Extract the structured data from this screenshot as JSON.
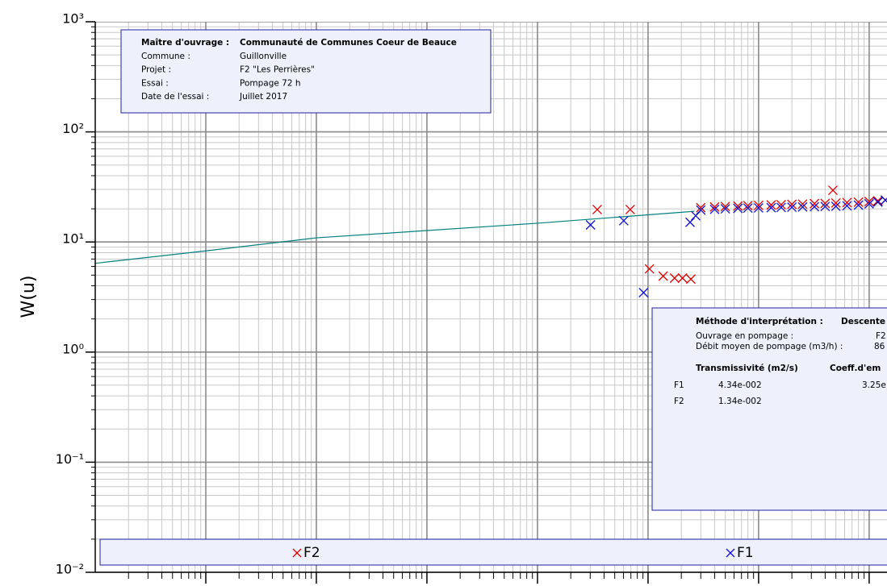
{
  "chart_data": {
    "type": "scatter",
    "y_label": "W(u)",
    "xscale": "log",
    "yscale": "log",
    "grid": true,
    "xlim": [
      0.1,
      1450000
    ],
    "xticks": [
      1,
      10,
      100,
      1000,
      10000,
      100000,
      1000000
    ],
    "ylim": [
      0.01,
      1000
    ],
    "yticks": [
      {
        "value": 0.01,
        "label": "10⁻²"
      },
      {
        "value": 0.1,
        "label": "10⁻¹"
      },
      {
        "value": 1,
        "label": "10⁰"
      },
      {
        "value": 10,
        "label": "10¹"
      },
      {
        "value": 100,
        "label": "10²"
      },
      {
        "value": 1000,
        "label": "10³"
      }
    ],
    "curve": {
      "color": "#008080",
      "x": [
        0.1,
        1,
        10,
        1000,
        26300
      ],
      "values": [
        6.4,
        8.3,
        10.9,
        14.8,
        19
      ]
    },
    "series": [
      {
        "name": "F2",
        "color": "#e00000",
        "x": [
          3470,
          6900,
          10300,
          13700,
          17400,
          20500,
          24400,
          470000,
          30000,
          40000,
          50000,
          65000,
          80000,
          100000,
          130000,
          160000,
          200000,
          250000,
          320000,
          400000,
          500000,
          630000,
          800000,
          1000000,
          1200000,
          1400000
        ],
        "values": [
          19.7,
          19.7,
          5.7,
          4.9,
          4.7,
          4.7,
          4.6,
          29.5,
          20.5,
          20.8,
          21,
          21.2,
          21.4,
          21.5,
          21.7,
          21.8,
          22,
          22.1,
          22.3,
          22.4,
          22.6,
          22.8,
          23,
          23.3,
          23.6,
          24
        ]
      },
      {
        "name": "F1",
        "color": "#1010d0",
        "x": [
          3020,
          6030,
          9100,
          24000,
          27000,
          30000,
          40000,
          50000,
          65000,
          80000,
          100000,
          130000,
          160000,
          200000,
          250000,
          320000,
          400000,
          500000,
          630000,
          800000,
          1000000,
          1200000,
          1400000
        ],
        "values": [
          14.3,
          15.6,
          3.47,
          15.1,
          17.3,
          19.5,
          19.8,
          20,
          20.2,
          20.3,
          20.4,
          20.5,
          20.6,
          20.7,
          20.8,
          20.9,
          21,
          21.1,
          21.3,
          21.6,
          22.2,
          23,
          24
        ]
      }
    ],
    "project_info": [
      [
        "Maître d'ouvrage :",
        "Communauté de Communes Coeur de Beauce"
      ],
      [
        "Commune :",
        "Guillonville"
      ],
      [
        "Projet :",
        "F2 \"Les Perrières\""
      ],
      [
        "Essai :",
        "Pompage 72 h"
      ],
      [
        "Date de l'essai :",
        "Juillet 2017"
      ]
    ],
    "method_box": {
      "title": [
        "Méthode d'interprétation :",
        "Descente"
      ],
      "rows": [
        [
          "Ouvrage en pompage :",
          "F2"
        ],
        [
          "Débit moyen de pompage (m3/h) :",
          "86"
        ]
      ],
      "headers": [
        "Transmissivité (m2/s)",
        "Coeff.d'em"
      ],
      "results": [
        [
          "F1",
          "4.34e-002",
          "3.25e"
        ],
        [
          "F2",
          "1.34e-002"
        ]
      ]
    }
  }
}
